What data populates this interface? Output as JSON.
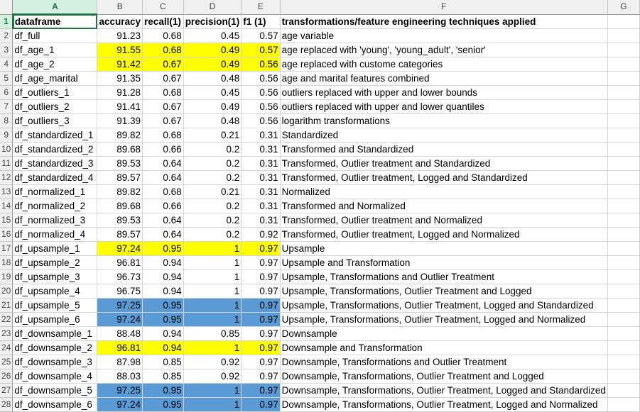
{
  "sheet": {
    "columns": [
      "A",
      "B",
      "C",
      "D",
      "E",
      "F",
      "G"
    ],
    "selected_column": "A",
    "selected_row": 1,
    "header": [
      "dataframe",
      "accuracy",
      "recall(1)",
      "precision(1)",
      "f1 (1)",
      "transformations/feature engineering techniques applied",
      ""
    ],
    "highlight_colors": {
      "yellow": "#ffff00",
      "blue": "#5b9bd5"
    },
    "rows": [
      {
        "n": "2",
        "name": "df_full",
        "acc": "91.23",
        "rec": "0.68",
        "prec": "0.45",
        "f1": "0.57",
        "desc": "age variable",
        "hl": ""
      },
      {
        "n": "3",
        "name": "df_age_1",
        "acc": "91.55",
        "rec": "0.68",
        "prec": "0.49",
        "f1": "0.57",
        "desc": "age replaced with 'young', 'young_adult', 'senior'",
        "hl": "yellow"
      },
      {
        "n": "4",
        "name": "df_age_2",
        "acc": "91.42",
        "rec": "0.67",
        "prec": "0.49",
        "f1": "0.56",
        "desc": "age replaced with custome categories",
        "hl": "yellow"
      },
      {
        "n": "5",
        "name": "df_age_marital",
        "acc": "91.35",
        "rec": "0.67",
        "prec": "0.48",
        "f1": "0.56",
        "desc": "age and marital features combined",
        "hl": ""
      },
      {
        "n": "6",
        "name": "df_outliers_1",
        "acc": "91.28",
        "rec": "0.68",
        "prec": "0.45",
        "f1": "0.56",
        "desc": "outliers replaced with upper and lower bounds",
        "hl": ""
      },
      {
        "n": "7",
        "name": "df_outliers_2",
        "acc": "91.41",
        "rec": "0.67",
        "prec": "0.49",
        "f1": "0.56",
        "desc": "outliers replaced with upper and lower quantiles",
        "hl": ""
      },
      {
        "n": "8",
        "name": "df_outliers_3",
        "acc": "91.39",
        "rec": "0.67",
        "prec": "0.48",
        "f1": "0.56",
        "desc": "logarithm transformations",
        "hl": ""
      },
      {
        "n": "9",
        "name": "df_standardized_1",
        "acc": "89.82",
        "rec": "0.68",
        "prec": "0.21",
        "f1": "0.31",
        "desc": "Standardized",
        "hl": ""
      },
      {
        "n": "10",
        "name": "df_standardized_2",
        "acc": "89.68",
        "rec": "0.66",
        "prec": "0.2",
        "f1": "0.31",
        "desc": "Transformed and Standardized",
        "hl": ""
      },
      {
        "n": "11",
        "name": "df_standardized_3",
        "acc": "89.53",
        "rec": "0.64",
        "prec": "0.2",
        "f1": "0.31",
        "desc": "Transformed, Outlier treatment and Standardized",
        "hl": ""
      },
      {
        "n": "12",
        "name": "df_standardized_4",
        "acc": "89.57",
        "rec": "0.64",
        "prec": "0.2",
        "f1": "0.31",
        "desc": "Transformed, Outlier treatment, Logged and Standardized",
        "hl": ""
      },
      {
        "n": "13",
        "name": "df_normalized_1",
        "acc": "89.82",
        "rec": "0.68",
        "prec": "0.21",
        "f1": "0.31",
        "desc": "Normalized",
        "hl": ""
      },
      {
        "n": "14",
        "name": "df_normalized_2",
        "acc": "89.68",
        "rec": "0.66",
        "prec": "0.2",
        "f1": "0.31",
        "desc": "Transformed and Normalized",
        "hl": ""
      },
      {
        "n": "15",
        "name": "df_normalized_3",
        "acc": "89.53",
        "rec": "0.64",
        "prec": "0.2",
        "f1": "0.31",
        "desc": "Transformed, Outlier treatment and Normalized",
        "hl": ""
      },
      {
        "n": "16",
        "name": "df_normalized_4",
        "acc": "89.57",
        "rec": "0.64",
        "prec": "0.2",
        "f1": "0.92",
        "desc": "Transformed, Outlier treatment, Logged and Normalized",
        "hl": ""
      },
      {
        "n": "17",
        "name": "df_upsample_1",
        "acc": "97.24",
        "rec": "0.95",
        "prec": "1",
        "f1": "0.97",
        "desc": "Upsample",
        "hl": "yellow"
      },
      {
        "n": "18",
        "name": "df_upsample_2",
        "acc": "96.81",
        "rec": "0.94",
        "prec": "1",
        "f1": "0.97",
        "desc": "Upsample and Transformation",
        "hl": ""
      },
      {
        "n": "19",
        "name": "df_upsample_3",
        "acc": "96.73",
        "rec": "0.94",
        "prec": "1",
        "f1": "0.97",
        "desc": "Upsample, Transformations and Outlier Treatment",
        "hl": ""
      },
      {
        "n": "20",
        "name": "df_upsample_4",
        "acc": "96.75",
        "rec": "0.94",
        "prec": "1",
        "f1": "0.97",
        "desc": "Upsample, Transformations, Outlier Treatment and Logged",
        "hl": ""
      },
      {
        "n": "21",
        "name": "df_upsample_5",
        "acc": "97.25",
        "rec": "0.95",
        "prec": "1",
        "f1": "0.97",
        "desc": "Upsample, Transformations, Outlier Treatment, Logged and Standardized",
        "hl": "blue"
      },
      {
        "n": "22",
        "name": "df_upsample_6",
        "acc": "97.24",
        "rec": "0.95",
        "prec": "1",
        "f1": "0.97",
        "desc": "Upsample, Transformations, Outlier Treatment, Logged and Normalized",
        "hl": "blue"
      },
      {
        "n": "23",
        "name": "df_downsample_1",
        "acc": "88.48",
        "rec": "0.94",
        "prec": "0.85",
        "f1": "0.97",
        "desc": "Downsample",
        "hl": ""
      },
      {
        "n": "24",
        "name": "df_downsample_2",
        "acc": "96.81",
        "rec": "0.94",
        "prec": "1",
        "f1": "0.97",
        "desc": "Downsample and Transformation",
        "hl": "yellow"
      },
      {
        "n": "25",
        "name": "df_downsample_3",
        "acc": "87.98",
        "rec": "0.85",
        "prec": "0.92",
        "f1": "0.97",
        "desc": "Downsample, Transformations and Outlier Treatment",
        "hl": ""
      },
      {
        "n": "26",
        "name": "df_downsample_4",
        "acc": "88.03",
        "rec": "0.85",
        "prec": "0.92",
        "f1": "0.97",
        "desc": "Downsample, Transformations, Outlier Treatment and Logged",
        "hl": ""
      },
      {
        "n": "27",
        "name": "df_downsample_5",
        "acc": "97.25",
        "rec": "0.95",
        "prec": "1",
        "f1": "0.97",
        "desc": "Downsample, Transformations, Outlier Treatment, Logged and Standardized",
        "hl": "blue"
      },
      {
        "n": "28",
        "name": "df_downsample_6",
        "acc": "97.24",
        "rec": "0.95",
        "prec": "1",
        "f1": "0.97",
        "desc": "Downsample, Transformations, Outlier Treatment, Logged and Normalized",
        "hl": "blue"
      }
    ]
  }
}
